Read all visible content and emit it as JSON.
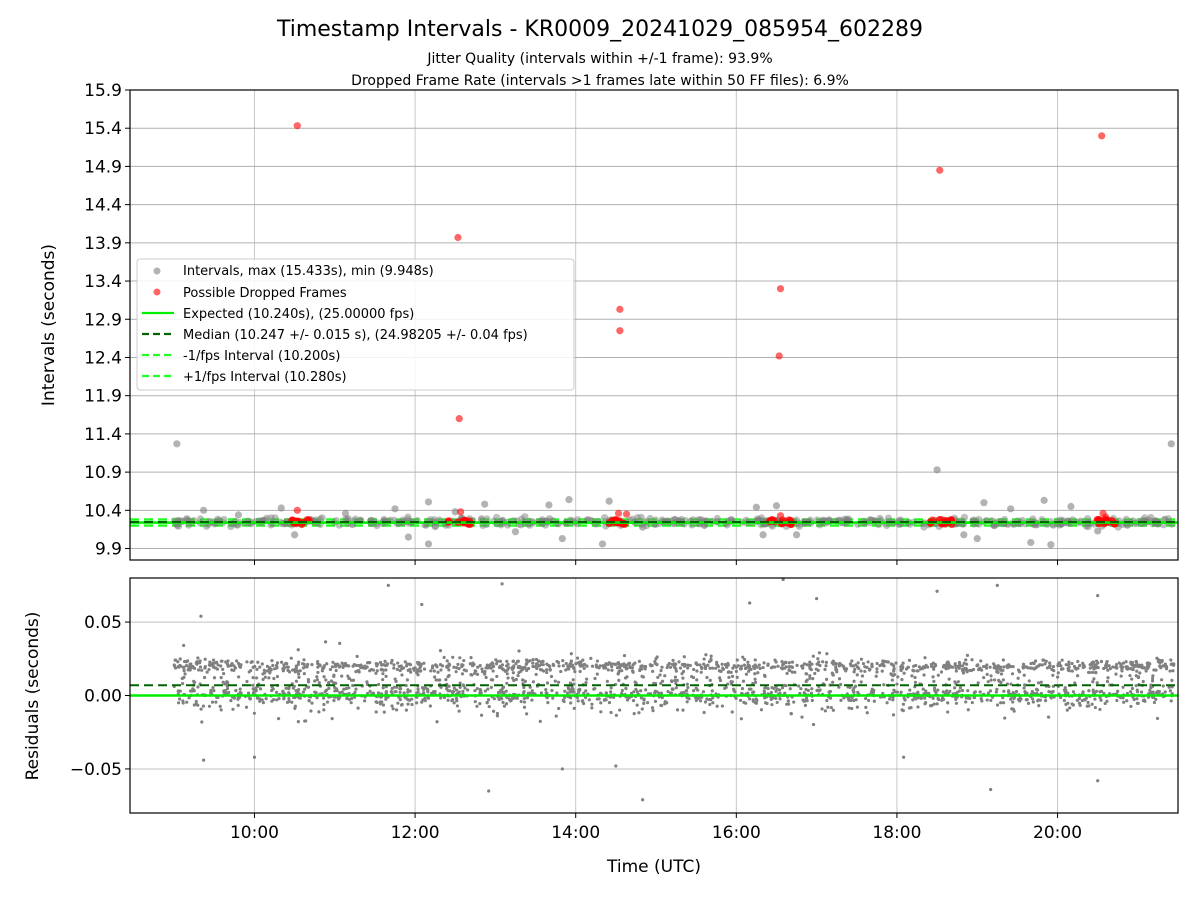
{
  "chart_data": [
    {
      "type": "scatter",
      "title": "Timestamp Intervals - KR0009_20241029_085954_602289",
      "subtitle_lines": [
        "Jitter Quality (intervals within +/-1 frame): 93.9%",
        "Dropped Frame Rate (intervals >1 frames late within 50 FF files): 6.9%"
      ],
      "xlabel": "",
      "ylabel": "Intervals (seconds)",
      "xlim_hours": [
        8.45,
        21.5
      ],
      "ylim": [
        9.75,
        15.9
      ],
      "yticks": [
        "9.9",
        "10.4",
        "10.9",
        "11.4",
        "11.9",
        "12.4",
        "12.9",
        "13.4",
        "13.9",
        "14.4",
        "14.9",
        "15.4",
        "15.9"
      ],
      "xticks": [
        "10:00",
        "12:00",
        "14:00",
        "16:00",
        "18:00",
        "20:00"
      ],
      "grid": true,
      "legend_placement": "center-left",
      "legend": [
        "Intervals, max (15.433s), min (9.948s)",
        "Possible Dropped Frames",
        "Expected (10.240s), (25.00000 fps)",
        "Median (10.247 +/- 0.015 s), (24.98205 +/- 0.04 fps)",
        "-1/fps Interval (10.200s)",
        "+1/fps Interval (10.280s)"
      ],
      "lines": {
        "expected": 10.24,
        "median": 10.247,
        "minus_one_fps": 10.2,
        "plus_one_fps": 10.28
      },
      "series": [
        {
          "name": "Intervals, max (15.433s), min (9.948s)",
          "color": "#808080",
          "points": [
            {
              "x": "09:02",
              "y": 11.27
            },
            {
              "x": "09:22",
              "y": 10.4
            },
            {
              "x": "09:48",
              "y": 10.34
            },
            {
              "x": "10:20",
              "y": 10.43
            },
            {
              "x": "10:30",
              "y": 10.08
            },
            {
              "x": "11:08",
              "y": 10.36
            },
            {
              "x": "11:45",
              "y": 10.42
            },
            {
              "x": "11:55",
              "y": 10.05
            },
            {
              "x": "12:10",
              "y": 9.96
            },
            {
              "x": "12:10",
              "y": 10.51
            },
            {
              "x": "12:30",
              "y": 10.38
            },
            {
              "x": "12:52",
              "y": 10.48
            },
            {
              "x": "13:15",
              "y": 10.12
            },
            {
              "x": "13:40",
              "y": 10.47
            },
            {
              "x": "13:50",
              "y": 10.03
            },
            {
              "x": "13:55",
              "y": 10.54
            },
            {
              "x": "14:20",
              "y": 9.96
            },
            {
              "x": "14:25",
              "y": 10.52
            },
            {
              "x": "14:50",
              "y": 10.18
            },
            {
              "x": "16:15",
              "y": 10.44
            },
            {
              "x": "16:20",
              "y": 10.08
            },
            {
              "x": "16:30",
              "y": 10.46
            },
            {
              "x": "16:45",
              "y": 10.08
            },
            {
              "x": "18:30",
              "y": 10.93
            },
            {
              "x": "18:50",
              "y": 10.08
            },
            {
              "x": "19:00",
              "y": 10.03
            },
            {
              "x": "19:05",
              "y": 10.5
            },
            {
              "x": "19:25",
              "y": 10.42
            },
            {
              "x": "19:40",
              "y": 9.98
            },
            {
              "x": "19:50",
              "y": 10.53
            },
            {
              "x": "19:55",
              "y": 9.95
            },
            {
              "x": "20:10",
              "y": 10.45
            },
            {
              "x": "20:30",
              "y": 10.13
            },
            {
              "x": "21:25",
              "y": 11.27
            }
          ]
        },
        {
          "name": "Possible Dropped Frames",
          "color": "#ff0000",
          "points": [
            {
              "x": "10:32",
              "y": 15.433
            },
            {
              "x": "12:32",
              "y": 13.97
            },
            {
              "x": "12:33",
              "y": 11.6
            },
            {
              "x": "14:33",
              "y": 13.03
            },
            {
              "x": "14:33",
              "y": 12.75
            },
            {
              "x": "16:33",
              "y": 13.3
            },
            {
              "x": "16:32",
              "y": 12.42
            },
            {
              "x": "18:32",
              "y": 14.85
            },
            {
              "x": "20:33",
              "y": 15.3
            },
            {
              "x": "10:32",
              "y": 10.4
            },
            {
              "x": "12:34",
              "y": 10.38
            },
            {
              "x": "14:32",
              "y": 10.36
            },
            {
              "x": "14:38",
              "y": 10.35
            },
            {
              "x": "16:33",
              "y": 10.33
            },
            {
              "x": "18:33",
              "y": 10.28
            },
            {
              "x": "20:34",
              "y": 10.36
            },
            {
              "x": "20:36",
              "y": 10.31
            }
          ]
        }
      ]
    },
    {
      "type": "scatter",
      "title": "",
      "xlabel": "Time (UTC)",
      "ylabel": "Residuals (seconds)",
      "xlim_hours": [
        8.45,
        21.5
      ],
      "ylim": [
        -0.08,
        0.08
      ],
      "yticks": [
        "−0.05",
        "0.00",
        "0.05"
      ],
      "xticks": [
        "10:00",
        "12:00",
        "14:00",
        "16:00",
        "18:00",
        "20:00"
      ],
      "grid": true,
      "lines": {
        "expected": 0.0,
        "median": 0.007
      },
      "series": [
        {
          "name": "",
          "color": "#808080",
          "points": [
            {
              "x": "09:20",
              "y": 0.054
            },
            {
              "x": "09:22",
              "y": -0.044
            },
            {
              "x": "10:00",
              "y": -0.042
            },
            {
              "x": "11:40",
              "y": 0.075
            },
            {
              "x": "12:05",
              "y": 0.062
            },
            {
              "x": "12:55",
              "y": -0.065
            },
            {
              "x": "13:05",
              "y": 0.076
            },
            {
              "x": "13:50",
              "y": -0.05
            },
            {
              "x": "14:30",
              "y": -0.048
            },
            {
              "x": "14:50",
              "y": -0.071
            },
            {
              "x": "16:10",
              "y": 0.063
            },
            {
              "x": "16:35",
              "y": 0.079
            },
            {
              "x": "17:00",
              "y": 0.066
            },
            {
              "x": "18:05",
              "y": -0.042
            },
            {
              "x": "18:30",
              "y": 0.071
            },
            {
              "x": "19:10",
              "y": -0.064
            },
            {
              "x": "19:15",
              "y": 0.075
            },
            {
              "x": "20:30",
              "y": 0.068
            },
            {
              "x": "20:30",
              "y": -0.058
            }
          ],
          "band_note": "dense residual cloud between about −0.03 and 0.04 s across 09:00–21:25"
        }
      ]
    }
  ],
  "colors": {
    "interval_points": "#808080",
    "dropped_points": "#ff0000",
    "expected_line": "#00ee00",
    "median_line": "#006400",
    "fps_bounds": "#22ff22",
    "grid": "#b0b0b0"
  }
}
